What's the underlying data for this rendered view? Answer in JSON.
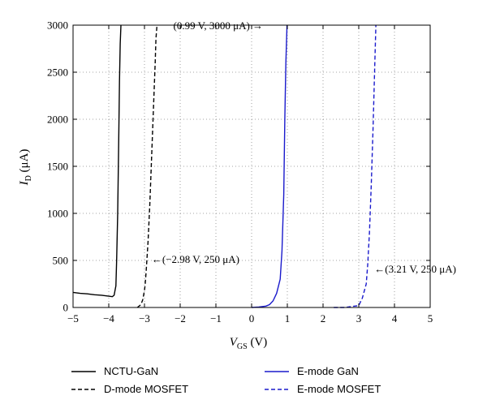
{
  "chart_data": {
    "type": "line",
    "xlabel_main": "V",
    "xlabel_sub": "GS",
    "xlabel_unit": " (V)",
    "ylabel_main": "I",
    "ylabel_sub": "D",
    "ylabel_unit": " (μA)",
    "xlim": [
      -5,
      5
    ],
    "ylim": [
      0,
      3000
    ],
    "xticks": [
      -5,
      -4,
      -3,
      -2,
      -1,
      0,
      1,
      2,
      3,
      4,
      5
    ],
    "yticks": [
      0,
      500,
      1000,
      1500,
      2000,
      2500,
      3000
    ],
    "xtick_labels": [
      "−5",
      "−4",
      "−3",
      "−2",
      "−1",
      "0",
      "1",
      "2",
      "3",
      "4",
      "5"
    ],
    "ytick_labels": [
      "0",
      "500",
      "1000",
      "1500",
      "2000",
      "2500",
      "3000"
    ],
    "grid": true,
    "legend_position": "below",
    "colors": {
      "black": "#000000",
      "blue": "#1a1acc"
    },
    "series": [
      {
        "name": "NCTU-GaN",
        "color": "#000000",
        "dash": "solid",
        "x": [
          -5.0,
          -4.8,
          -4.6,
          -4.4,
          -4.2,
          -4.0,
          -3.9,
          -3.85,
          -3.8,
          -3.78,
          -3.75,
          -3.72,
          -3.7,
          -3.68,
          -3.66
        ],
        "y": [
          160,
          150,
          145,
          135,
          130,
          120,
          115,
          130,
          230,
          500,
          1000,
          1800,
          2400,
          2800,
          3000
        ]
      },
      {
        "name": "D-mode MOSFET",
        "color": "#000000",
        "dash": "dashed",
        "x": [
          -3.2,
          -3.1,
          -3.05,
          -3.0,
          -2.98,
          -2.95,
          -2.9,
          -2.85,
          -2.8,
          -2.75,
          -2.7,
          -2.68,
          -2.65
        ],
        "y": [
          0,
          30,
          80,
          180,
          250,
          400,
          700,
          1100,
          1600,
          2100,
          2600,
          2850,
          3000
        ]
      },
      {
        "name": "E-mode GaN",
        "color": "#1a1acc",
        "dash": "solid",
        "x": [
          0.0,
          0.2,
          0.4,
          0.5,
          0.6,
          0.7,
          0.8,
          0.85,
          0.9,
          0.93,
          0.96,
          0.99
        ],
        "y": [
          0,
          5,
          15,
          30,
          70,
          150,
          300,
          600,
          1200,
          2000,
          2600,
          3000
        ]
      },
      {
        "name": "E-mode MOSFET",
        "color": "#1a1acc",
        "dash": "dashed",
        "x": [
          2.3,
          2.6,
          3.0,
          3.1,
          3.21,
          3.25,
          3.3,
          3.35,
          3.4,
          3.45,
          3.48
        ],
        "y": [
          0,
          0,
          20,
          100,
          250,
          450,
          800,
          1300,
          1900,
          2600,
          3000
        ]
      }
    ],
    "annotations": [
      {
        "text": "(0.99 V, 3000 μA)",
        "x": 0.99,
        "y": 3000
      },
      {
        "text": "(−2.98 V, 250 μA)",
        "x": -2.98,
        "y": 250
      },
      {
        "text": "(3.21 V, 250 μA)",
        "x": 3.21,
        "y": 250
      }
    ]
  }
}
